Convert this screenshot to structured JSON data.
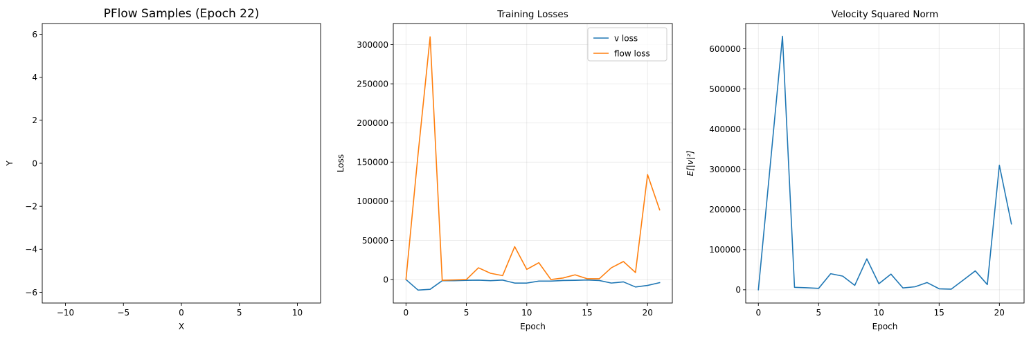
{
  "chart_data": [
    {
      "type": "scatter",
      "title": "PFlow Samples (Epoch 22)",
      "xlabel": "X",
      "ylabel": "Y",
      "xlim": [
        -12,
        12
      ],
      "ylim": [
        -6.5,
        6.5
      ],
      "xticks": [
        -10,
        -5,
        0,
        5,
        10
      ],
      "xtick_labels": [
        "−10",
        "−5",
        "0",
        "5",
        "10"
      ],
      "yticks": [
        -6,
        -4,
        -2,
        0,
        2,
        4,
        6
      ],
      "ytick_labels": [
        "−6",
        "−4",
        "−2",
        "0",
        "2",
        "4",
        "6"
      ],
      "grid": false,
      "points": []
    },
    {
      "type": "line",
      "title": "Training Losses",
      "xlabel": "Epoch",
      "ylabel": "Loss",
      "xlim": [
        -1.05,
        22.05
      ],
      "ylim": [
        -30000,
        327000
      ],
      "xticks": [
        0,
        5,
        10,
        15,
        20
      ],
      "xtick_labels": [
        "0",
        "5",
        "10",
        "15",
        "20"
      ],
      "yticks": [
        0,
        50000,
        100000,
        150000,
        200000,
        250000,
        300000
      ],
      "ytick_labels": [
        "0",
        "50000",
        "100000",
        "150000",
        "200000",
        "250000",
        "300000"
      ],
      "grid": true,
      "legend_position": "top-right",
      "x": [
        0,
        1,
        2,
        3,
        4,
        5,
        6,
        7,
        8,
        9,
        10,
        11,
        12,
        13,
        14,
        15,
        16,
        17,
        18,
        19,
        20,
        21
      ],
      "series": [
        {
          "name": "v loss",
          "color": "#1f77b4",
          "values": [
            0,
            -13500,
            -12500,
            -1500,
            -1500,
            -1000,
            -800,
            -1500,
            -700,
            -4500,
            -4500,
            -2000,
            -2000,
            -1200,
            -1000,
            -600,
            -1200,
            -4500,
            -3000,
            -9500,
            -7500,
            -4000
          ]
        },
        {
          "name": "flow loss",
          "color": "#ff7f0e",
          "values": [
            0,
            160000,
            310000,
            -1000,
            -500,
            0,
            15000,
            8000,
            5000,
            42000,
            13000,
            21500,
            0,
            2000,
            6000,
            1000,
            1000,
            15000,
            23000,
            9000,
            134000,
            89000
          ]
        }
      ]
    },
    {
      "type": "line",
      "title": "Velocity Squared Norm",
      "xlabel": "Epoch",
      "ylabel": "E[|v|²]",
      "xlim": [
        -1.05,
        22.05
      ],
      "ylim": [
        -33000,
        663000
      ],
      "xticks": [
        0,
        5,
        10,
        15,
        20
      ],
      "xtick_labels": [
        "0",
        "5",
        "10",
        "15",
        "20"
      ],
      "yticks": [
        0,
        100000,
        200000,
        300000,
        400000,
        500000,
        600000
      ],
      "ytick_labels": [
        "0",
        "100000",
        "200000",
        "300000",
        "400000",
        "500000",
        "600000"
      ],
      "grid": true,
      "x": [
        0,
        1,
        2,
        3,
        4,
        5,
        6,
        7,
        8,
        9,
        10,
        11,
        12,
        13,
        14,
        15,
        16,
        17,
        18,
        19,
        20,
        21
      ],
      "series": [
        {
          "color": "#1f77b4",
          "values": [
            0,
            315000,
            631000,
            6000,
            5000,
            3500,
            40000,
            34000,
            11000,
            77000,
            15000,
            39000,
            4500,
            7500,
            18000,
            2500,
            1500,
            24000,
            47000,
            13000,
            310000,
            164000
          ]
        }
      ]
    }
  ]
}
